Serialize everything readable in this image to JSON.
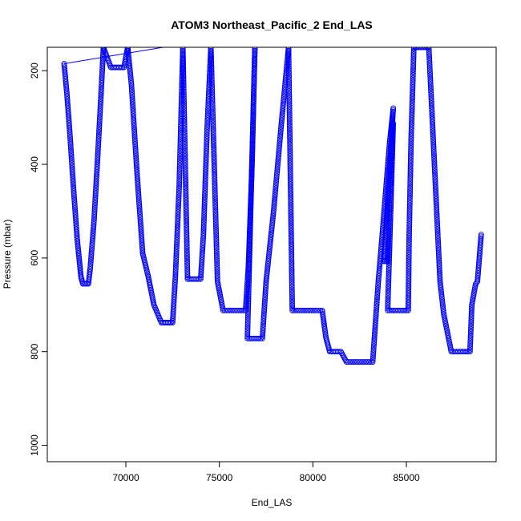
{
  "chart_data": {
    "type": "scatter",
    "title": "ATOM3 Northeast_Pacific_2 End_LAS",
    "xlabel": "End_LAS",
    "ylabel": "Pressure (mbar)",
    "xlim": [
      65800,
      89800
    ],
    "ylim": [
      1035,
      150
    ],
    "y_reversed": true,
    "xticks": [
      70000,
      75000,
      80000,
      85000
    ],
    "xtick_labels": [
      "70000",
      "75000",
      "80000",
      "85000"
    ],
    "yticks": [
      200,
      400,
      600,
      800,
      1000
    ],
    "ytick_labels": [
      "200",
      "400",
      "600",
      "800",
      "1000"
    ],
    "grid": false,
    "marker_color": "#0000ff",
    "line_segment": {
      "x": [
        66700,
        72000
      ],
      "y": [
        185,
        150
      ]
    },
    "series": [
      {
        "points": [
          [
            66700,
            185
          ],
          [
            66850,
            250
          ],
          [
            67000,
            330
          ],
          [
            67200,
            450
          ],
          [
            67400,
            560
          ],
          [
            67600,
            640
          ],
          [
            67700,
            655
          ],
          [
            68000,
            655
          ],
          [
            68100,
            620
          ],
          [
            68300,
            520
          ],
          [
            68500,
            380
          ],
          [
            68700,
            230
          ],
          [
            68800,
            150
          ],
          [
            69200,
            193
          ],
          [
            69900,
            193
          ],
          [
            70100,
            150
          ],
          [
            70300,
            230
          ],
          [
            70600,
            420
          ],
          [
            70900,
            590
          ],
          [
            71200,
            640
          ],
          [
            71500,
            700
          ],
          [
            71900,
            738
          ],
          [
            72500,
            738
          ],
          [
            72650,
            640
          ],
          [
            72850,
            450
          ],
          [
            73050,
            150
          ],
          [
            73300,
            645
          ],
          [
            74000,
            645
          ],
          [
            74150,
            550
          ],
          [
            74350,
            320
          ],
          [
            74550,
            150
          ],
          [
            74900,
            650
          ],
          [
            75200,
            712
          ],
          [
            76400,
            712
          ],
          [
            76550,
            620
          ],
          [
            76750,
            400
          ],
          [
            76900,
            150
          ],
          [
            76500,
            772
          ],
          [
            77300,
            772
          ],
          [
            77500,
            650
          ],
          [
            77900,
            500
          ],
          [
            78300,
            320
          ],
          [
            78700,
            150
          ],
          [
            78900,
            712
          ],
          [
            80500,
            712
          ],
          [
            80700,
            770
          ],
          [
            80900,
            800
          ],
          [
            81500,
            800
          ],
          [
            81800,
            822
          ],
          [
            83200,
            822
          ],
          [
            83500,
            650
          ],
          [
            83700,
            555
          ],
          [
            83900,
            455
          ],
          [
            84100,
            355
          ],
          [
            84300,
            280
          ],
          [
            83800,
            607
          ],
          [
            84000,
            607
          ],
          [
            84250,
            313
          ],
          [
            84300,
            313
          ],
          [
            84000,
            712
          ],
          [
            85100,
            712
          ],
          [
            85150,
            550
          ],
          [
            85250,
            350
          ],
          [
            85400,
            150
          ],
          [
            86200,
            150
          ],
          [
            86500,
            400
          ],
          [
            86800,
            650
          ],
          [
            87000,
            720
          ],
          [
            87400,
            800
          ],
          [
            88400,
            800
          ],
          [
            88500,
            700
          ],
          [
            88700,
            656
          ],
          [
            88800,
            650
          ],
          [
            88900,
            600
          ],
          [
            89000,
            550
          ]
        ]
      }
    ]
  }
}
